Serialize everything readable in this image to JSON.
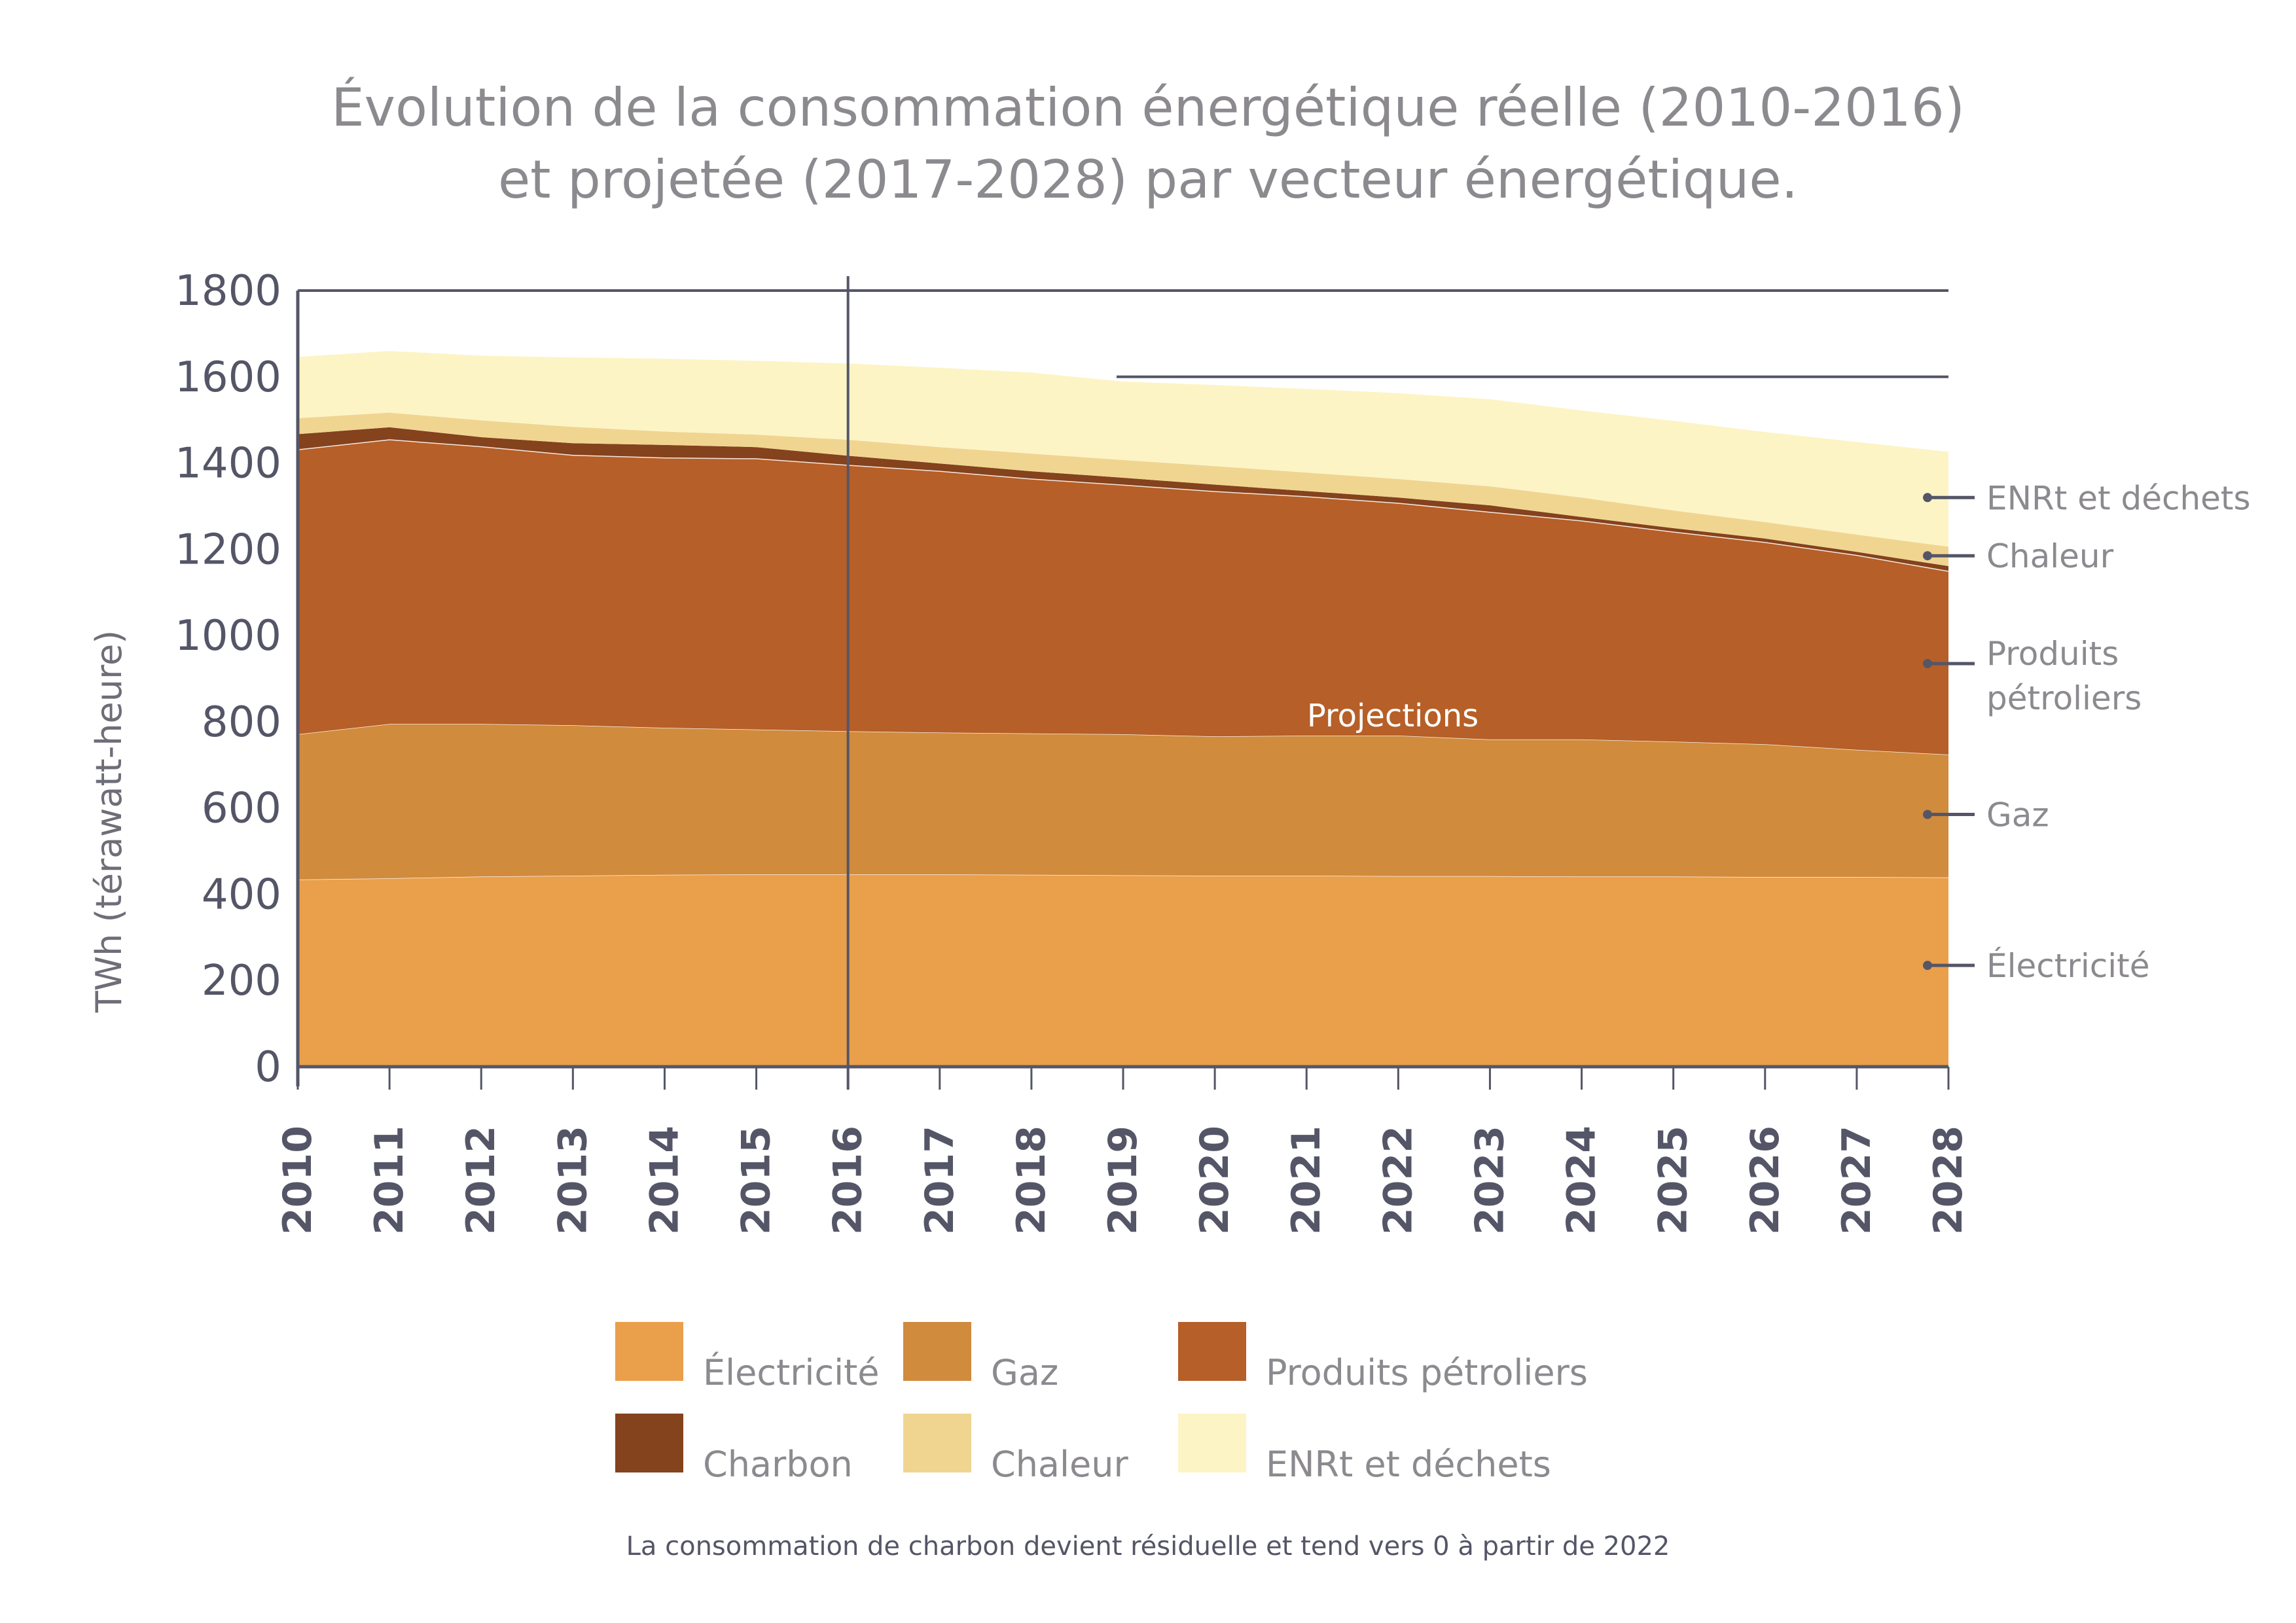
{
  "title": {
    "line1": "Évolution de la consommation énergétique réelle (2010-2016)",
    "line2": "et projetée (2017-2028) par vecteur énergétique."
  },
  "footnote": "La consommation de charbon devient résiduelle et tend vers 0 à partir de 2022",
  "projection_label": "Projections",
  "chart_data": {
    "type": "area",
    "stacked": true,
    "title": "Évolution de la consommation énergétique réelle (2010-2016) et projetée (2017-2028) par vecteur énergétique.",
    "xlabel": "",
    "ylabel": "TWh (térawatt-heure)",
    "ylim": [
      0,
      1800
    ],
    "yticks": [
      0,
      200,
      400,
      600,
      800,
      1000,
      1200,
      1400,
      1600,
      1800
    ],
    "x": [
      "2010",
      "2011",
      "2012",
      "2013",
      "2014",
      "2015",
      "2016",
      "2017",
      "2018",
      "2019",
      "2020",
      "2021",
      "2022",
      "2023",
      "2024",
      "2025",
      "2026",
      "2027",
      "2028"
    ],
    "projection_start": "2016",
    "reference_lines": [
      1800,
      1600
    ],
    "grid": false,
    "legend_position": "bottom",
    "series": [
      {
        "name": "Électricité",
        "color": "#EA9F4B",
        "values": [
          434,
          437,
          441,
          443,
          445,
          446,
          446,
          446,
          445,
          444,
          443,
          443,
          442,
          442,
          441,
          441,
          440,
          440,
          439
        ]
      },
      {
        "name": "Gaz",
        "color": "#D08B3D",
        "values": [
          337,
          358,
          354,
          349,
          341,
          336,
          332,
          329,
          328,
          327,
          323,
          325,
          326,
          317,
          318,
          313,
          308,
          295,
          285
        ]
      },
      {
        "name": "Produits pétroliers",
        "color": "#B65F28",
        "values": [
          661,
          660,
          644,
          627,
          627,
          629,
          618,
          607,
          591,
          579,
          569,
          555,
          540,
          528,
          508,
          487,
          469,
          452,
          426
        ]
      },
      {
        "name": "Charbon",
        "color": "#84421D",
        "values": [
          35,
          28,
          21,
          27,
          29,
          26,
          21,
          17,
          17,
          16,
          15,
          12,
          12,
          15,
          8,
          8,
          8,
          7,
          11
        ]
      },
      {
        "name": "Chaleur",
        "color": "#F0D591",
        "values": [
          37,
          34,
          39,
          38,
          31,
          29,
          37,
          38,
          41,
          41,
          43,
          43,
          43,
          44,
          45,
          41,
          38,
          40,
          45
        ]
      },
      {
        "name": "ENRt et déchets",
        "color": "#FDF4C6",
        "values": [
          142,
          143,
          150,
          161,
          169,
          171,
          177,
          184,
          188,
          182,
          188,
          194,
          199,
          202,
          202,
          208,
          209,
          215,
          220
        ]
      }
    ],
    "side_labels": [
      {
        "series": "ENRt et déchets",
        "text": "ENRt et déchets"
      },
      {
        "series": "Chaleur",
        "text": "Chaleur"
      },
      {
        "series": "Produits pétroliers",
        "text": "Produits",
        "text2": "pétroliers"
      },
      {
        "series": "Gaz",
        "text": "Gaz"
      },
      {
        "series": "Électricité",
        "text": "Électricité"
      }
    ],
    "legend": [
      {
        "label": "Électricité",
        "color": "#EA9F4B"
      },
      {
        "label": "Gaz",
        "color": "#D08B3D"
      },
      {
        "label": "Produits pétroliers",
        "color": "#B65F28"
      },
      {
        "label": "Charbon",
        "color": "#84421D"
      },
      {
        "label": "Chaleur",
        "color": "#F0D591"
      },
      {
        "label": "ENRt et déchets",
        "color": "#FDF4C6"
      }
    ]
  },
  "colors": {
    "axis": "#545667",
    "text_muted": "#8c8a8f",
    "boundary": "#ffffff"
  }
}
